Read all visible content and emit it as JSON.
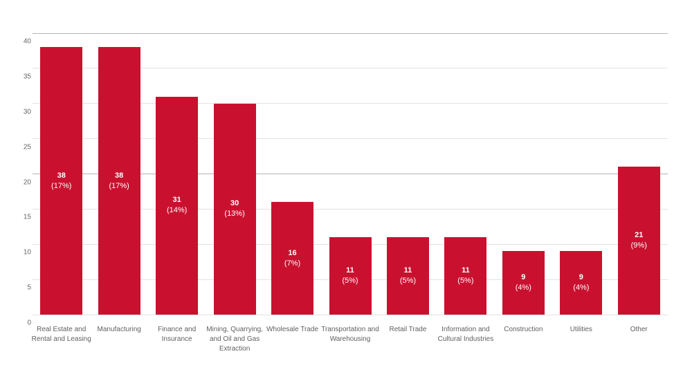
{
  "page": {
    "background": "#ffffff"
  },
  "colors": {
    "bar": "#c9112f",
    "gridline_minor": "#e2e2e2",
    "gridline_major": "#b3b3b3",
    "axis_text": "#666666",
    "xaxis_text": "#5f5f5f",
    "bar_label_text": "#ffffff"
  },
  "chart_data": {
    "type": "bar",
    "categories": [
      "Real Estate and Rental and Leasing",
      "Manufacturing",
      "Finance and Insurance",
      "Mining, Quarrying, and Oil and Gas Extraction",
      "Wholesale Trade",
      "Transportation and Warehousing",
      "Retail Trade",
      "Information and Cultural Industries",
      "Construction",
      "Utilities",
      "Other"
    ],
    "values": [
      38,
      38,
      31,
      30,
      16,
      11,
      11,
      11,
      9,
      9,
      21
    ],
    "percent_labels": [
      "(17%)",
      "(17%)",
      "(14%)",
      "(13%)",
      "(7%)",
      "(5%)",
      "(5%)",
      "(5%)",
      "(4%)",
      "(4%)",
      "(9%)"
    ],
    "ylim": [
      0,
      40
    ],
    "yticks": [
      0,
      5,
      10,
      15,
      20,
      25,
      30,
      35,
      40
    ],
    "major_gridlines": [
      20,
      40
    ],
    "grid": true,
    "legend": false,
    "xlabel": "",
    "ylabel": ""
  }
}
